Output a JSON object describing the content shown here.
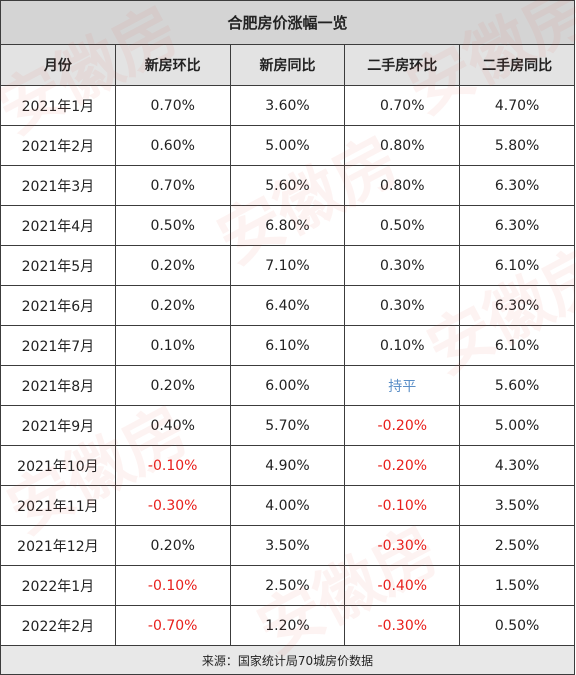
{
  "title": "合肥房价涨幅一览",
  "headers": [
    "月份",
    "新房环比",
    "新房同比",
    "二手房环比",
    "二手房同比"
  ],
  "rows": [
    {
      "month": "2021年1月",
      "new_mom": "0.70%",
      "new_yoy": "3.60%",
      "used_mom": "0.70%",
      "used_yoy": "4.70%"
    },
    {
      "month": "2021年2月",
      "new_mom": "0.60%",
      "new_yoy": "5.00%",
      "used_mom": "0.80%",
      "used_yoy": "5.80%"
    },
    {
      "month": "2021年3月",
      "new_mom": "0.70%",
      "new_yoy": "5.60%",
      "used_mom": "0.80%",
      "used_yoy": "6.30%"
    },
    {
      "month": "2021年4月",
      "new_mom": "0.50%",
      "new_yoy": "6.80%",
      "used_mom": "0.50%",
      "used_yoy": "6.30%"
    },
    {
      "month": "2021年5月",
      "new_mom": "0.20%",
      "new_yoy": "7.10%",
      "used_mom": "0.30%",
      "used_yoy": "6.10%"
    },
    {
      "month": "2021年6月",
      "new_mom": "0.20%",
      "new_yoy": "6.40%",
      "used_mom": "0.30%",
      "used_yoy": "6.30%"
    },
    {
      "month": "2021年7月",
      "new_mom": "0.10%",
      "new_yoy": "6.10%",
      "used_mom": "0.10%",
      "used_yoy": "6.10%"
    },
    {
      "month": "2021年8月",
      "new_mom": "0.20%",
      "new_yoy": "6.00%",
      "used_mom": "持平",
      "used_yoy": "5.60%"
    },
    {
      "month": "2021年9月",
      "new_mom": "0.40%",
      "new_yoy": "5.70%",
      "used_mom": "-0.20%",
      "used_yoy": "5.00%"
    },
    {
      "month": "2021年10月",
      "new_mom": "-0.10%",
      "new_yoy": "4.90%",
      "used_mom": "-0.20%",
      "used_yoy": "4.30%"
    },
    {
      "month": "2021年11月",
      "new_mom": "-0.30%",
      "new_yoy": "4.00%",
      "used_mom": "-0.10%",
      "used_yoy": "3.50%"
    },
    {
      "month": "2021年12月",
      "new_mom": "0.20%",
      "new_yoy": "3.50%",
      "used_mom": "-0.30%",
      "used_yoy": "2.50%"
    },
    {
      "month": "2022年1月",
      "new_mom": "-0.10%",
      "new_yoy": "2.50%",
      "used_mom": "-0.40%",
      "used_yoy": "1.50%"
    },
    {
      "month": "2022年2月",
      "new_mom": "-0.70%",
      "new_yoy": "1.20%",
      "used_mom": "-0.30%",
      "used_yoy": "0.50%"
    }
  ],
  "footer": "来源：国家统计局70城房价数据",
  "watermark": "安徽房",
  "colors": {
    "negative": "#e8201c",
    "flat": "#5b8fc7"
  }
}
